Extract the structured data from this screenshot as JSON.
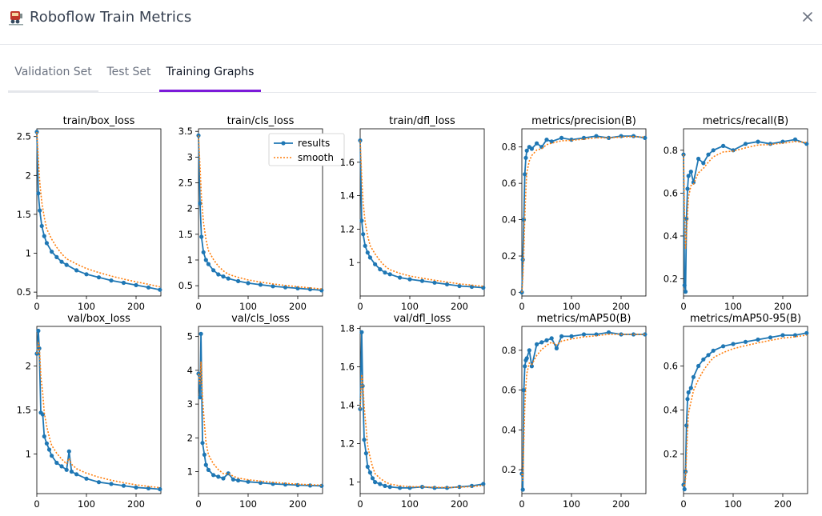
{
  "header": {
    "title": "Roboflow Train Metrics",
    "app_icon": "train-icon",
    "close_icon": "close-icon"
  },
  "tabs": [
    {
      "label": "Validation Set",
      "active": false
    },
    {
      "label": "Test Set",
      "active": false
    },
    {
      "label": "Training Graphs",
      "active": true
    }
  ],
  "colors": {
    "accent": "#7c1ad9",
    "results_line": "#1f77b4",
    "smooth_line": "#ff7f0e"
  },
  "chart_data": [
    {
      "type": "line",
      "title": "train/box_loss",
      "xlim": [
        0,
        250
      ],
      "ylim": [
        0.45,
        2.6
      ],
      "xticks": [
        0,
        100,
        200
      ],
      "yticks": [
        0.5,
        1.0,
        1.5,
        2.0,
        2.5
      ],
      "series": [
        {
          "name": "results",
          "x": [
            0,
            3,
            6,
            10,
            15,
            20,
            30,
            40,
            50,
            60,
            80,
            100,
            125,
            150,
            175,
            200,
            225,
            248
          ],
          "y": [
            2.56,
            1.77,
            1.55,
            1.35,
            1.22,
            1.13,
            1.02,
            0.95,
            0.89,
            0.85,
            0.78,
            0.73,
            0.69,
            0.65,
            0.62,
            0.59,
            0.56,
            0.53
          ]
        }
      ],
      "legend": null
    },
    {
      "type": "line",
      "title": "train/cls_loss",
      "xlim": [
        0,
        250
      ],
      "ylim": [
        0.3,
        3.55
      ],
      "xticks": [
        0,
        100,
        200
      ],
      "yticks": [
        0.5,
        1.0,
        1.5,
        2.0,
        2.5,
        3.0,
        3.5
      ],
      "series": [
        {
          "name": "results",
          "x": [
            0,
            3,
            6,
            10,
            15,
            20,
            30,
            40,
            50,
            60,
            80,
            100,
            125,
            150,
            175,
            200,
            225,
            248
          ],
          "y": [
            3.42,
            2.1,
            1.45,
            1.15,
            1.0,
            0.92,
            0.8,
            0.72,
            0.68,
            0.64,
            0.59,
            0.55,
            0.52,
            0.49,
            0.47,
            0.45,
            0.43,
            0.41
          ]
        }
      ],
      "legend": {
        "position": "top-right",
        "entries": [
          "results",
          "smooth"
        ]
      }
    },
    {
      "type": "line",
      "title": "train/dfl_loss",
      "xlim": [
        0,
        250
      ],
      "ylim": [
        0.8,
        1.8
      ],
      "xticks": [
        0,
        100,
        200
      ],
      "yticks": [
        1.0,
        1.2,
        1.4,
        1.6
      ],
      "series": [
        {
          "name": "results",
          "x": [
            0,
            3,
            6,
            10,
            15,
            20,
            30,
            40,
            50,
            60,
            80,
            100,
            125,
            150,
            175,
            200,
            225,
            248
          ],
          "y": [
            1.73,
            1.25,
            1.17,
            1.1,
            1.06,
            1.03,
            0.99,
            0.96,
            0.94,
            0.93,
            0.91,
            0.9,
            0.89,
            0.88,
            0.87,
            0.86,
            0.855,
            0.85
          ]
        }
      ],
      "legend": null
    },
    {
      "type": "line",
      "title": "metrics/precision(B)",
      "xlim": [
        0,
        250
      ],
      "ylim": [
        -0.02,
        0.9
      ],
      "xticks": [
        0,
        100,
        200
      ],
      "yticks": [
        0.0,
        0.2,
        0.4,
        0.6,
        0.8
      ],
      "series": [
        {
          "name": "results",
          "x": [
            0,
            2,
            4,
            6,
            8,
            10,
            15,
            20,
            30,
            40,
            50,
            60,
            80,
            100,
            125,
            150,
            175,
            200,
            225,
            248
          ],
          "y": [
            0.0,
            0.18,
            0.4,
            0.65,
            0.74,
            0.78,
            0.8,
            0.79,
            0.82,
            0.8,
            0.84,
            0.83,
            0.85,
            0.84,
            0.85,
            0.86,
            0.85,
            0.86,
            0.86,
            0.85
          ]
        }
      ],
      "legend": null
    },
    {
      "type": "line",
      "title": "metrics/recall(B)",
      "xlim": [
        0,
        250
      ],
      "ylim": [
        0.12,
        0.9
      ],
      "xticks": [
        0,
        100,
        200
      ],
      "yticks": [
        0.2,
        0.4,
        0.6,
        0.8
      ],
      "series": [
        {
          "name": "results",
          "x": [
            0,
            2,
            4,
            6,
            8,
            10,
            15,
            20,
            30,
            40,
            50,
            60,
            80,
            100,
            125,
            150,
            175,
            200,
            225,
            248
          ],
          "y": [
            0.78,
            0.17,
            0.14,
            0.48,
            0.62,
            0.68,
            0.7,
            0.65,
            0.76,
            0.74,
            0.78,
            0.8,
            0.82,
            0.8,
            0.83,
            0.84,
            0.83,
            0.84,
            0.85,
            0.83
          ]
        }
      ],
      "legend": null
    },
    {
      "type": "line",
      "title": "val/box_loss",
      "xlim": [
        0,
        250
      ],
      "ylim": [
        0.55,
        2.45
      ],
      "xticks": [
        0,
        100,
        200
      ],
      "yticks": [
        1.0,
        1.5,
        2.0
      ],
      "series": [
        {
          "name": "results",
          "x": [
            0,
            3,
            5,
            8,
            12,
            15,
            20,
            25,
            30,
            40,
            50,
            60,
            65,
            70,
            80,
            100,
            125,
            150,
            175,
            200,
            225,
            248
          ],
          "y": [
            2.14,
            2.4,
            2.2,
            1.47,
            1.45,
            1.2,
            1.12,
            1.05,
            0.98,
            0.9,
            0.86,
            0.82,
            1.03,
            0.8,
            0.77,
            0.72,
            0.68,
            0.66,
            0.64,
            0.62,
            0.61,
            0.6
          ]
        }
      ],
      "legend": null
    },
    {
      "type": "line",
      "title": "val/cls_loss",
      "xlim": [
        0,
        250
      ],
      "ylim": [
        0.35,
        5.3
      ],
      "xticks": [
        0,
        100,
        200
      ],
      "yticks": [
        1,
        2,
        3,
        4,
        5
      ],
      "series": [
        {
          "name": "results",
          "x": [
            0,
            3,
            5,
            8,
            12,
            15,
            20,
            30,
            40,
            50,
            60,
            70,
            80,
            100,
            125,
            150,
            175,
            200,
            225,
            248
          ],
          "y": [
            3.9,
            3.2,
            5.08,
            1.85,
            1.5,
            1.2,
            1.05,
            0.9,
            0.85,
            0.8,
            0.95,
            0.77,
            0.74,
            0.7,
            0.67,
            0.64,
            0.62,
            0.6,
            0.59,
            0.58
          ]
        }
      ],
      "legend": null
    },
    {
      "type": "line",
      "title": "val/dfl_loss",
      "xlim": [
        0,
        250
      ],
      "ylim": [
        0.94,
        1.81
      ],
      "xticks": [
        0,
        100,
        200
      ],
      "yticks": [
        1.0,
        1.2,
        1.4,
        1.6,
        1.8
      ],
      "series": [
        {
          "name": "results",
          "x": [
            0,
            3,
            5,
            8,
            12,
            15,
            20,
            25,
            30,
            40,
            50,
            60,
            80,
            100,
            125,
            150,
            175,
            200,
            225,
            248
          ],
          "y": [
            1.38,
            1.78,
            1.5,
            1.22,
            1.15,
            1.08,
            1.05,
            1.02,
            1.0,
            0.99,
            0.98,
            0.975,
            0.97,
            0.97,
            0.975,
            0.97,
            0.97,
            0.975,
            0.98,
            0.99
          ]
        }
      ],
      "legend": null
    },
    {
      "type": "line",
      "title": "metrics/mAP50(B)",
      "xlim": [
        0,
        250
      ],
      "ylim": [
        0.08,
        0.92
      ],
      "xticks": [
        0,
        100,
        200
      ],
      "yticks": [
        0.2,
        0.4,
        0.6,
        0.8
      ],
      "series": [
        {
          "name": "results",
          "x": [
            0,
            2,
            4,
            6,
            8,
            10,
            15,
            20,
            30,
            40,
            50,
            60,
            70,
            80,
            100,
            125,
            150,
            175,
            200,
            225,
            248
          ],
          "y": [
            0.18,
            0.1,
            0.6,
            0.72,
            0.75,
            0.76,
            0.8,
            0.72,
            0.83,
            0.84,
            0.85,
            0.86,
            0.81,
            0.87,
            0.87,
            0.88,
            0.88,
            0.89,
            0.88,
            0.88,
            0.88
          ]
        }
      ],
      "legend": null
    },
    {
      "type": "line",
      "title": "metrics/mAP50-95(B)",
      "xlim": [
        0,
        250
      ],
      "ylim": [
        0.02,
        0.78
      ],
      "xticks": [
        0,
        100,
        200
      ],
      "yticks": [
        0.2,
        0.4,
        0.6
      ],
      "series": [
        {
          "name": "results",
          "x": [
            0,
            2,
            4,
            6,
            8,
            10,
            15,
            20,
            30,
            40,
            50,
            60,
            80,
            100,
            125,
            150,
            175,
            200,
            225,
            248
          ],
          "y": [
            0.06,
            0.04,
            0.12,
            0.33,
            0.45,
            0.48,
            0.5,
            0.55,
            0.6,
            0.63,
            0.65,
            0.67,
            0.69,
            0.7,
            0.71,
            0.72,
            0.73,
            0.74,
            0.74,
            0.75
          ]
        }
      ],
      "legend": null
    }
  ]
}
